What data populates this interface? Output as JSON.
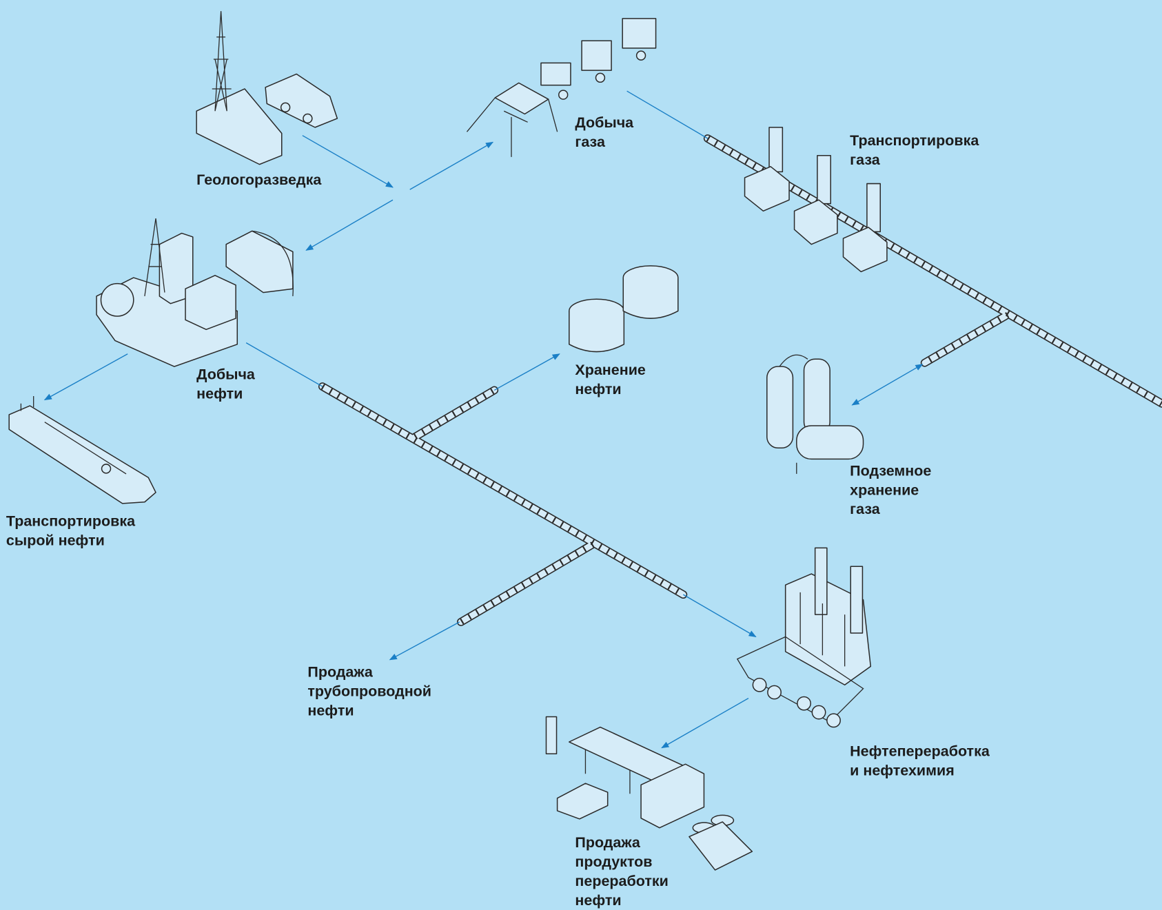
{
  "nodes": [
    {
      "lines": [
        "Геологоразведка"
      ]
    },
    {
      "lines": [
        "Добыча",
        "газа"
      ]
    },
    {
      "lines": [
        "Транспортировка",
        "газа"
      ]
    },
    {
      "lines": [
        "Добыча",
        "нефти"
      ]
    },
    {
      "lines": [
        "Хранение",
        "нефти"
      ]
    },
    {
      "lines": [
        "Транспортировка",
        "сырой нефти"
      ]
    },
    {
      "lines": [
        "Подземное",
        "хранение",
        "газа"
      ]
    },
    {
      "lines": [
        "Продажа",
        "трубопроводной",
        "нефти"
      ]
    },
    {
      "lines": [
        "Нефтепереработка",
        "и нефтехимия"
      ]
    },
    {
      "lines": [
        "Продажа",
        "продуктов",
        "переработки",
        "нефти"
      ]
    }
  ]
}
